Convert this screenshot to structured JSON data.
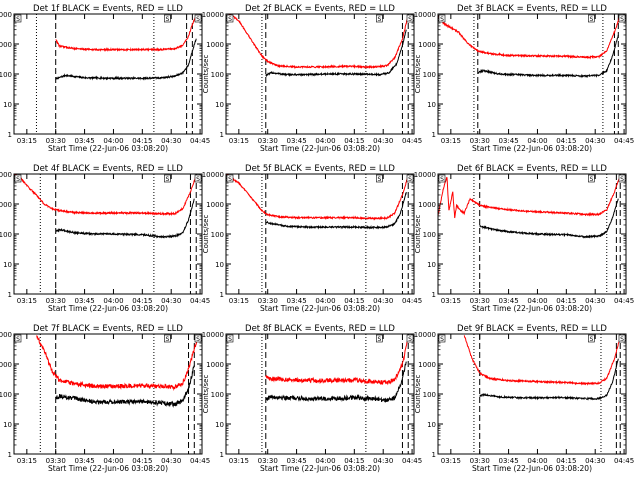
{
  "figure": {
    "ylabel": "Counts/sec",
    "xlabel": "Start Time (22-Jun-06 03:08:20)",
    "x_ticks": [
      "03:15",
      "03:30",
      "03:45",
      "04:00",
      "04:15",
      "04:30",
      "04:45"
    ],
    "y_ticks": [
      "1",
      "10",
      "100",
      "1000",
      "10000"
    ],
    "corner_marks": [
      "S",
      "S"
    ]
  },
  "colors": {
    "events": "#000000",
    "lld": "#ff0000",
    "axes": "#000000"
  },
  "chart_data": [
    {
      "type": "line",
      "title": "Det 1f BLACK = Events, RED = LLD",
      "xlabel": "Start Time (22-Jun-06 03:08:20)",
      "ylabel": "Counts/sec",
      "xlim": [
        "03:08:20",
        "04:46:00"
      ],
      "ylim": [
        1,
        10000
      ],
      "log_y": true,
      "dotted_vlines": [
        "03:20",
        "04:21"
      ],
      "dashed_vlines": [
        "03:30",
        "04:38",
        "04:41"
      ],
      "series": [
        {
          "name": "BLACK = Events",
          "x": [
            "03:30",
            "03:35",
            "03:45",
            "04:00",
            "04:15",
            "04:25",
            "04:32",
            "04:36",
            "04:39",
            "04:41",
            "04:43"
          ],
          "values": [
            68,
            90,
            75,
            72,
            72,
            75,
            85,
            110,
            200,
            600,
            1500
          ]
        },
        {
          "name": "RED = LLD",
          "x": [
            "03:30",
            "03:32",
            "03:40",
            "03:50",
            "04:00",
            "04:15",
            "04:25",
            "04:32",
            "04:36",
            "04:39",
            "04:41",
            "04:43"
          ],
          "values": [
            1400,
            850,
            700,
            650,
            650,
            650,
            650,
            700,
            900,
            1800,
            4500,
            9000
          ]
        }
      ]
    },
    {
      "type": "line",
      "title": "Det 2f BLACK = Events, RED = LLD",
      "xlabel": "Start Time (22-Jun-06 03:08:20)",
      "ylabel": "Counts/sec",
      "xlim": [
        "03:08:20",
        "04:46:00"
      ],
      "ylim": [
        1,
        10000
      ],
      "log_y": true,
      "dotted_vlines": [
        "03:27",
        "04:21"
      ],
      "dashed_vlines": [
        "03:29",
        "04:40",
        "04:43"
      ],
      "series": [
        {
          "name": "BLACK = Events",
          "x": [
            "03:29",
            "03:32",
            "03:40",
            "03:50",
            "04:00",
            "04:10",
            "04:20",
            "04:28",
            "04:33",
            "04:37",
            "04:40",
            "04:42"
          ],
          "values": [
            90,
            110,
            95,
            95,
            100,
            100,
            100,
            95,
            110,
            220,
            900,
            3000
          ]
        },
        {
          "name": "RED = LLD",
          "x": [
            "03:08:20",
            "03:15",
            "03:22",
            "03:27",
            "03:30",
            "03:35",
            "03:45",
            "04:00",
            "04:15",
            "04:25",
            "04:32",
            "04:36",
            "04:40",
            "04:43"
          ],
          "values": [
            12000,
            6000,
            1200,
            400,
            260,
            190,
            170,
            175,
            180,
            170,
            190,
            350,
            1500,
            9000
          ]
        }
      ]
    },
    {
      "type": "line",
      "title": "Det 3f BLACK = Events, RED = LLD",
      "xlabel": "Start Time (22-Jun-06 03:08:20)",
      "ylabel": "Counts/sec",
      "xlim": [
        "03:08:20",
        "04:46:00"
      ],
      "ylim": [
        1,
        10000
      ],
      "log_y": true,
      "dotted_vlines": [
        "03:27",
        "04:34"
      ],
      "dashed_vlines": [
        "03:29",
        "04:40",
        "04:42"
      ],
      "series": [
        {
          "name": "BLACK = Events",
          "x": [
            "03:29",
            "03:32",
            "03:40",
            "03:50",
            "04:00",
            "04:15",
            "04:25",
            "04:32",
            "04:36",
            "04:39",
            "04:42"
          ],
          "values": [
            110,
            130,
            100,
            95,
            90,
            90,
            85,
            90,
            130,
            400,
            2000
          ]
        },
        {
          "name": "RED = LLD",
          "x": [
            "03:08:20",
            "03:11",
            "03:15",
            "03:19",
            "03:23",
            "03:26",
            "03:29",
            "03:35",
            "03:45",
            "04:00",
            "04:15",
            "04:25",
            "04:32",
            "04:36",
            "04:40",
            "04:43"
          ],
          "values": [
            9000,
            5000,
            3500,
            2500,
            1200,
            800,
            600,
            480,
            420,
            400,
            390,
            360,
            380,
            600,
            2500,
            9000
          ]
        }
      ]
    },
    {
      "type": "line",
      "title": "Det 4f BLACK = Events, RED = LLD",
      "xlabel": "Start Time (22-Jun-06 03:08:20)",
      "ylabel": "Counts/sec",
      "xlim": [
        "03:08:20",
        "04:46:00"
      ],
      "ylim": [
        1,
        10000
      ],
      "log_y": true,
      "dotted_vlines": [
        "03:22",
        "04:21"
      ],
      "dashed_vlines": [
        "03:30",
        "04:40",
        "04:43"
      ],
      "series": [
        {
          "name": "BLACK = Events",
          "x": [
            "03:30",
            "03:32",
            "03:40",
            "03:50",
            "04:00",
            "04:15",
            "04:25",
            "04:32",
            "04:36",
            "04:39",
            "04:42"
          ],
          "values": [
            120,
            140,
            110,
            100,
            100,
            95,
            80,
            85,
            110,
            300,
            1500
          ]
        },
        {
          "name": "RED = LLD",
          "x": [
            "03:08:20",
            "03:12",
            "03:16",
            "03:20",
            "03:24",
            "03:28",
            "03:32",
            "03:40",
            "03:50",
            "04:00",
            "04:15",
            "04:25",
            "04:32",
            "04:36",
            "04:40",
            "04:43"
          ],
          "values": [
            10000,
            7000,
            3500,
            2000,
            1000,
            700,
            600,
            520,
            500,
            500,
            500,
            470,
            480,
            700,
            2500,
            9000
          ]
        }
      ]
    },
    {
      "type": "line",
      "title": "Det 5f BLACK = Events, RED = LLD",
      "xlabel": "Start Time (22-Jun-06 03:08:20)",
      "ylabel": "Counts/sec",
      "xlim": [
        "03:08:20",
        "04:46:00"
      ],
      "ylim": [
        1,
        10000
      ],
      "log_y": true,
      "dotted_vlines": [
        "03:27",
        "04:21"
      ],
      "dashed_vlines": [
        "03:29",
        "04:40",
        "04:43"
      ],
      "series": [
        {
          "name": "BLACK = Events",
          "x": [
            "03:29",
            "03:32",
            "03:40",
            "03:50",
            "04:00",
            "04:15",
            "04:25",
            "04:32",
            "04:36",
            "04:39",
            "04:42"
          ],
          "values": [
            250,
            220,
            180,
            170,
            170,
            170,
            165,
            170,
            220,
            500,
            2500
          ]
        },
        {
          "name": "RED = LLD",
          "x": [
            "03:08:20",
            "03:15",
            "03:22",
            "03:27",
            "03:30",
            "03:35",
            "03:45",
            "04:00",
            "04:15",
            "04:25",
            "04:32",
            "04:36",
            "04:40",
            "04:43"
          ],
          "values": [
            10000,
            5000,
            1500,
            600,
            450,
            380,
            350,
            350,
            350,
            330,
            340,
            500,
            2000,
            9000
          ]
        }
      ]
    },
    {
      "type": "line",
      "title": "Det 6f BLACK = Events, RED = LLD",
      "xlabel": "Start Time (22-Jun-06 03:08:20)",
      "ylabel": "Counts/sec",
      "xlim": [
        "03:08:20",
        "04:46:00"
      ],
      "ylim": [
        1,
        10000
      ],
      "log_y": true,
      "dotted_vlines": [
        "03:27",
        "04:36"
      ],
      "dashed_vlines": [
        "03:30",
        "04:41",
        "04:43"
      ],
      "series": [
        {
          "name": "BLACK = Events",
          "x": [
            "03:30",
            "03:32",
            "03:40",
            "03:50",
            "04:00",
            "04:15",
            "04:25",
            "04:32",
            "04:36",
            "04:39",
            "04:42"
          ],
          "values": [
            180,
            170,
            130,
            110,
            100,
            95,
            80,
            85,
            120,
            350,
            1500
          ]
        },
        {
          "name": "RED = LLD",
          "x": [
            "03:08:20",
            "03:11",
            "03:13",
            "03:14",
            "03:16",
            "03:17",
            "03:18",
            "03:20",
            "03:22",
            "03:25",
            "03:30",
            "03:40",
            "03:50",
            "04:00",
            "04:15",
            "04:25",
            "04:32",
            "04:36",
            "04:40",
            "04:43"
          ],
          "values": [
            400,
            3000,
            8000,
            600,
            2500,
            350,
            900,
            600,
            500,
            1500,
            900,
            700,
            600,
            550,
            500,
            450,
            450,
            650,
            2500,
            9000
          ]
        }
      ]
    },
    {
      "type": "line",
      "title": "Det 7f BLACK = Events, RED = LLD",
      "xlabel": "Start Time (22-Jun-06 03:08:20)",
      "ylabel": "Counts/sec",
      "xlim": [
        "03:08:20",
        "04:46:00"
      ],
      "ylim": [
        1,
        10000
      ],
      "log_y": true,
      "dotted_vlines": [
        "03:22",
        "04:21"
      ],
      "dashed_vlines": [
        "03:30",
        "04:39",
        "04:42"
      ],
      "series": [
        {
          "name": "BLACK = Events",
          "x": [
            "03:30",
            "03:32",
            "03:40",
            "03:50",
            "04:00",
            "04:15",
            "04:25",
            "04:32",
            "04:36",
            "04:39",
            "04:42"
          ],
          "values": [
            75,
            85,
            70,
            55,
            55,
            55,
            50,
            45,
            60,
            150,
            900
          ]
        },
        {
          "name": "RED = LLD",
          "x": [
            "03:20",
            "03:25",
            "03:28",
            "03:32",
            "03:40",
            "03:50",
            "04:00",
            "04:15",
            "04:25",
            "04:32",
            "04:36",
            "04:39",
            "04:42",
            "04:44"
          ],
          "values": [
            9000,
            2000,
            600,
            280,
            220,
            180,
            180,
            190,
            180,
            170,
            230,
            700,
            3000,
            9000
          ]
        }
      ]
    },
    {
      "type": "line",
      "title": "Det 8f BLACK = Events, RED = LLD",
      "xlabel": "Start Time (22-Jun-06 03:08:20)",
      "ylabel": "Counts/sec",
      "xlim": [
        "03:08:20",
        "04:46:00"
      ],
      "ylim": [
        1,
        10000
      ],
      "log_y": true,
      "dotted_vlines": [
        "03:27",
        "04:21"
      ],
      "dashed_vlines": [
        "03:29",
        "04:40",
        "04:43"
      ],
      "series": [
        {
          "name": "BLACK = Events",
          "x": [
            "03:29",
            "03:32",
            "03:40",
            "03:50",
            "04:00",
            "04:15",
            "04:25",
            "04:32",
            "04:36",
            "04:39",
            "04:42"
          ],
          "values": [
            70,
            80,
            75,
            70,
            70,
            75,
            70,
            60,
            75,
            200,
            1200
          ]
        },
        {
          "name": "RED = LLD",
          "x": [
            "03:29",
            "03:31",
            "03:40",
            "03:50",
            "04:00",
            "04:15",
            "04:25",
            "04:32",
            "04:36",
            "04:40",
            "04:43"
          ],
          "values": [
            400,
            330,
            300,
            280,
            280,
            290,
            260,
            240,
            300,
            1000,
            8000
          ]
        }
      ]
    },
    {
      "type": "line",
      "title": "Det 9f BLACK = Events, RED = LLD",
      "xlabel": "Start Time (22-Jun-06 03:08:20)",
      "ylabel": "Counts/sec",
      "xlim": [
        "03:08:20",
        "04:46:00"
      ],
      "ylim": [
        1,
        10000
      ],
      "log_y": true,
      "dotted_vlines": [
        "03:27",
        "04:33"
      ],
      "dashed_vlines": [
        "03:30",
        "04:41",
        "04:43"
      ],
      "series": [
        {
          "name": "BLACK = Events",
          "x": [
            "03:30",
            "03:32",
            "03:40",
            "03:50",
            "04:00",
            "04:15",
            "04:25",
            "04:32",
            "04:36",
            "04:39",
            "04:42"
          ],
          "values": [
            85,
            95,
            80,
            75,
            75,
            75,
            70,
            70,
            90,
            250,
            1500
          ]
        },
        {
          "name": "RED = LLD",
          "x": [
            "03:22",
            "03:26",
            "03:30",
            "03:35",
            "03:45",
            "04:00",
            "04:15",
            "04:25",
            "04:32",
            "04:36",
            "04:40",
            "04:43"
          ],
          "values": [
            9000,
            1500,
            500,
            330,
            280,
            260,
            240,
            220,
            230,
            330,
            1500,
            8000
          ]
        }
      ]
    }
  ]
}
